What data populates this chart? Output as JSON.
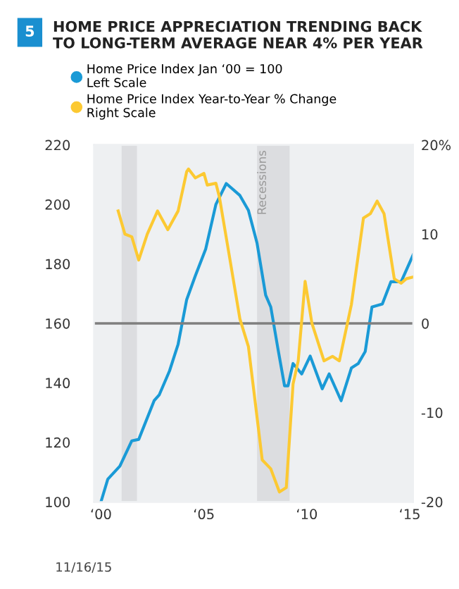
{
  "chart_data": {
    "type": "line",
    "title": "HOME PRICE APPRECIATION TRENDING BACK\nTO LONG-TERM AVERAGE NEAR 4% PER YEAR",
    "annotations": [
      "5",
      "11/16/15"
    ],
    "series": [
      {
        "name": "Home Price Index Jan ‘00 = 100\nLeft Scale",
        "color": "#1a9ad6",
        "axis": "y",
        "x": [
          "2000-01",
          "2000-05",
          "2000-12",
          "2001-07",
          "2001-11",
          "2002-08",
          "2002-11",
          "2003-05",
          "2003-10",
          "2004-03",
          "2004-08",
          "2005-02",
          "2005-08",
          "2006-02",
          "2006-10",
          "2007-03",
          "2007-08",
          "2008-01",
          "2008-04",
          "2008-08",
          "2008-12",
          "2009-02",
          "2009-05",
          "2009-10",
          "2010-03",
          "2010-10",
          "2011-02",
          "2011-09",
          "2012-03",
          "2012-07",
          "2012-11",
          "2013-03",
          "2013-09",
          "2014-02",
          "2014-08",
          "2015-03"
        ],
        "values": [
          100,
          107.6,
          112,
          120.5,
          121,
          134,
          136,
          144,
          153,
          168,
          176,
          185,
          200,
          207,
          203,
          198,
          187,
          169.5,
          165.5,
          152,
          139,
          139,
          146.5,
          143,
          149,
          138,
          143,
          134,
          145,
          146.5,
          150.5,
          165.5,
          166.5,
          174,
          174,
          183
        ]
      },
      {
        "name": "Home Price Index Year-to-Year % Change\nRight Scale",
        "color": "#fcc932",
        "axis": "y2",
        "x": [
          "2000-11",
          "2001-03",
          "2001-07",
          "2001-11",
          "2002-04",
          "2002-10",
          "2003-04",
          "2003-10",
          "2004-03",
          "2004-04",
          "2004-08",
          "2005-01",
          "2005-03",
          "2005-08",
          "2005-10",
          "2006-04",
          "2006-10",
          "2007-03",
          "2007-07",
          "2007-11",
          "2008-04",
          "2008-09",
          "2009-01",
          "2009-05",
          "2009-08",
          "2009-12",
          "2010-04",
          "2010-11",
          "2011-04",
          "2011-08",
          "2012-03",
          "2012-10",
          "2013-02",
          "2013-06",
          "2013-10",
          "2014-04",
          "2014-08",
          "2014-11",
          "2015-03"
        ],
        "values": [
          12.6,
          10,
          9.7,
          7.1,
          10,
          12.6,
          10.5,
          12.6,
          17,
          17.3,
          16.3,
          16.8,
          15.5,
          15.7,
          14.2,
          7.4,
          0.5,
          -2.6,
          -8.9,
          -15.3,
          -16.3,
          -18.9,
          -18.4,
          -6.8,
          -4.2,
          4.7,
          0,
          -4.2,
          -3.7,
          -4.2,
          2.1,
          11.8,
          12.3,
          13.7,
          12.3,
          5.0,
          4.5,
          5.0,
          5.2
        ]
      }
    ],
    "xlim": [
      "1999-09",
      "2015-03"
    ],
    "xticks": [
      {
        "value": "2000",
        "label": "‘00"
      },
      {
        "value": "2005",
        "label": "‘05"
      },
      {
        "value": "2010",
        "label": "‘10"
      },
      {
        "value": "2015",
        "label": "‘15"
      }
    ],
    "ylim": [
      100,
      220
    ],
    "yticks": [
      100,
      120,
      140,
      160,
      180,
      200,
      220
    ],
    "y2lim": [
      -20,
      20
    ],
    "y2ticks": [
      {
        "value": -20,
        "label": "-20"
      },
      {
        "value": -10,
        "label": "-10"
      },
      0,
      10,
      {
        "value": 20,
        "label": "20%"
      }
    ],
    "ref_lines": [
      {
        "axis": "y2",
        "value": 0,
        "color": "#7f7f7f"
      }
    ],
    "bands": [
      {
        "axis": "x",
        "from": "2001-01",
        "to": "2001-10",
        "color": "#dcdde0"
      },
      {
        "axis": "x",
        "from": "2007-08",
        "to": "2009-03",
        "color": "#dcdde0",
        "label": "Recessions"
      }
    ],
    "legend": "top",
    "marker": "none",
    "line_style": "solid",
    "grid": false
  }
}
